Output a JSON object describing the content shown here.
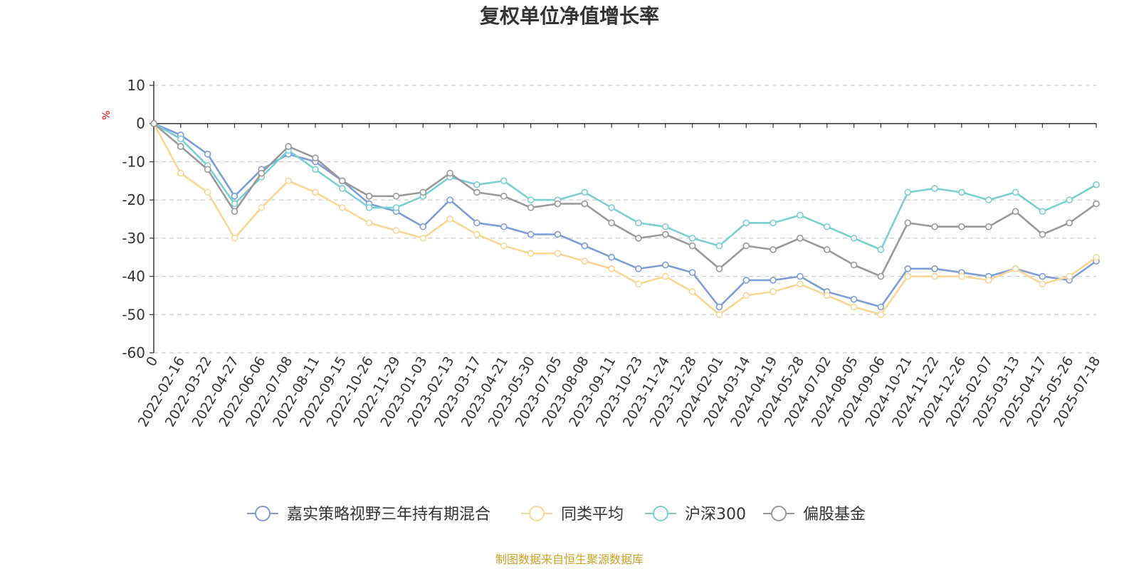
{
  "chart_data": {
    "type": "line",
    "title": "复权单位净值增长率",
    "ylabel": "%",
    "source_note": "制图数据来自恒生聚源数据库",
    "ylim": [
      -60,
      10
    ],
    "yticks": [
      10,
      0,
      -10,
      -20,
      -30,
      -40,
      -50,
      -60
    ],
    "grid": true,
    "legend_position": "bottom",
    "x_tick_labels": [
      "0",
      "2022-02-16",
      "2022-03-22",
      "2022-04-27",
      "2022-06-06",
      "2022-07-08",
      "2022-08-11",
      "2022-09-15",
      "2022-10-26",
      "2022-11-29",
      "2023-01-03",
      "2023-02-13",
      "2023-03-17",
      "2023-04-21",
      "2023-05-30",
      "2023-07-05",
      "2023-08-08",
      "2023-09-11",
      "2023-10-23",
      "2023-11-24",
      "2023-12-28",
      "2024-02-01",
      "2024-03-14",
      "2024-04-19",
      "2024-05-28",
      "2024-07-02",
      "2024-08-05",
      "2024-09-06",
      "2024-10-21",
      "2024-11-22",
      "2024-12-26",
      "2025-02-07",
      "2025-03-13",
      "2025-04-17",
      "2025-05-26",
      "2025-07-18"
    ],
    "series": [
      {
        "name": "嘉实策略视野三年持有期混合",
        "color": "#7b9ed6",
        "values": [
          0,
          -3,
          -8,
          -19,
          -12,
          -8,
          -10,
          -15,
          -21,
          -23,
          -27,
          -20,
          -26,
          -27,
          -29,
          -29,
          -32,
          -35,
          -38,
          -37,
          -39,
          -48,
          -41,
          -41,
          -40,
          -44,
          -46,
          -48,
          -38,
          -38,
          -39,
          -40,
          -38,
          -40,
          -41,
          -36
        ]
      },
      {
        "name": "同类平均",
        "color": "#fcd593",
        "values": [
          0,
          -13,
          -18,
          -30,
          -22,
          -15,
          -18,
          -22,
          -26,
          -28,
          -30,
          -25,
          -29,
          -32,
          -34,
          -34,
          -36,
          -38,
          -42,
          -40,
          -44,
          -50,
          -45,
          -44,
          -42,
          -45,
          -48,
          -50,
          -40,
          -40,
          -40,
          -41,
          -38,
          -42,
          -40,
          -35
        ]
      },
      {
        "name": "沪深300",
        "color": "#78cfd4",
        "values": [
          0,
          -4,
          -11,
          -21,
          -14,
          -7,
          -12,
          -17,
          -22,
          -22,
          -19,
          -14,
          -16,
          -15,
          -20,
          -20,
          -18,
          -22,
          -26,
          -27,
          -30,
          -32,
          -26,
          -26,
          -24,
          -27,
          -30,
          -33,
          -18,
          -17,
          -18,
          -20,
          -18,
          -23,
          -20,
          -16
        ]
      },
      {
        "name": "偏股基金",
        "color": "#999999",
        "values": [
          0,
          -6,
          -12,
          -23,
          -13,
          -6,
          -9,
          -15,
          -19,
          -19,
          -18,
          -13,
          -18,
          -19,
          -22,
          -21,
          -21,
          -26,
          -30,
          -29,
          -32,
          -38,
          -32,
          -33,
          -30,
          -33,
          -37,
          -40,
          -26,
          -27,
          -27,
          -27,
          -23,
          -29,
          -26,
          -21
        ]
      }
    ]
  }
}
